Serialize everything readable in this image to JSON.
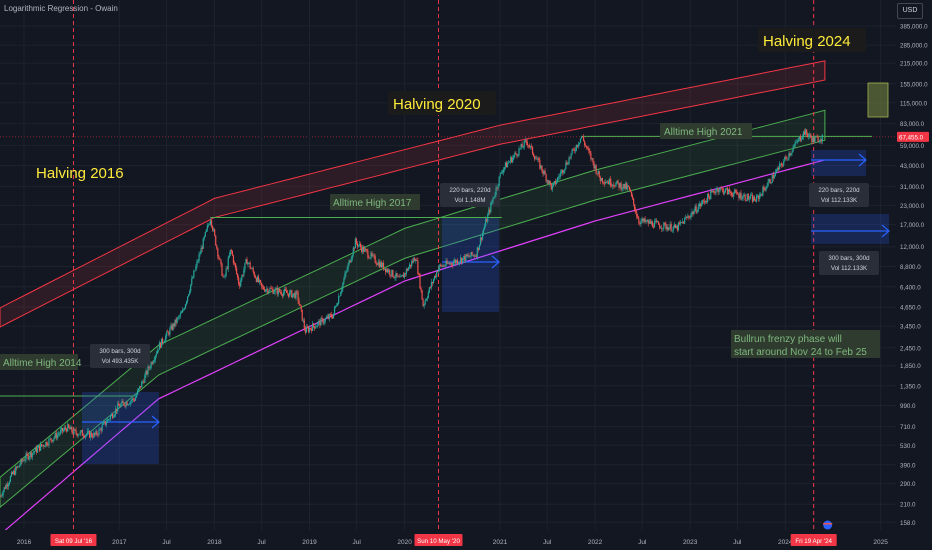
{
  "header": {
    "title": "Logarithmic Regression - Owain",
    "currency": "USD"
  },
  "price_axis": {
    "ticks": [
      "385,000.0",
      "285,000.0",
      "215,000.0",
      "155,000.0",
      "115,000.0",
      "83,000.0",
      "59,000.0",
      "43,000.0",
      "31,000.0",
      "23,000.0",
      "17,000.0",
      "12,000.0",
      "8,800.0",
      "6,400.0",
      "4,650.0",
      "3,450.0",
      "2,450.0",
      "1,850.0",
      "1,350.0",
      "990.0",
      "710.0",
      "530.0",
      "390.0",
      "290.0",
      "210.0",
      "158.0"
    ],
    "last_price": "67,455.0"
  },
  "time_axis": {
    "ticks": [
      "2016",
      "2017",
      "Jul",
      "2018",
      "Jul",
      "2019",
      "Jul",
      "2020",
      "2021",
      "Jul",
      "2022",
      "Jul",
      "2023",
      "Jul",
      "2024",
      "2025"
    ],
    "halving_date_labels": [
      "Sat 09 Jul '16",
      "Sun 10 May '20",
      "Fri 19 Apr '24"
    ]
  },
  "annotations": {
    "halving_2016": "Halving 2016",
    "halving_2020": "Halving 2020",
    "halving_2024": "Halving 2024",
    "ath_2014": "Alltime High 2014",
    "ath_2017": "Alltime High 2017",
    "ath_2021": "Alltime High 2021",
    "bullrun_line1": "Bullrun frenzy phase will",
    "bullrun_line2": "start around Nov 24 to Feb 25"
  },
  "measures": [
    {
      "line1": "300 bars, 300d",
      "line2": "Vol 493.435K"
    },
    {
      "line1": "220 bars, 220d",
      "line2": "Vol 1.148M"
    },
    {
      "line1": "220 bars, 220d",
      "line2": "Vol 112.133K"
    },
    {
      "line1": "300 bars, 300d",
      "line2": "Vol 112.133K"
    }
  ],
  "colors": {
    "background": "#131722",
    "upper_band": "#f23645",
    "lower_band": "#4caf50",
    "regression": "#e040fb",
    "halving_line": "#f23645",
    "annotation_text": "#ffeb3b",
    "measure_box": "#2962ff",
    "candle_up": "#26a69a",
    "candle_down": "#ef5350"
  },
  "chart_data": {
    "type": "candlestick",
    "scale": "log",
    "ylim": [
      140,
      480000
    ],
    "xlim": [
      "2015-10-01",
      "2025-03-01"
    ],
    "price_path": [
      [
        "2015-10-01",
        240
      ],
      [
        "2015-11-15",
        330
      ],
      [
        "2016-01-01",
        430
      ],
      [
        "2016-06-15",
        700
      ],
      [
        "2016-07-09",
        650
      ],
      [
        "2016-10-01",
        620
      ],
      [
        "2017-01-01",
        990
      ],
      [
        "2017-03-01",
        1100
      ],
      [
        "2017-06-01",
        2500
      ],
      [
        "2017-09-01",
        4300
      ],
      [
        "2017-12-17",
        19000
      ],
      [
        "2018-02-06",
        7000
      ],
      [
        "2018-03-05",
        11500
      ],
      [
        "2018-04-06",
        6600
      ],
      [
        "2018-05-05",
        9700
      ],
      [
        "2018-07-01",
        6300
      ],
      [
        "2018-11-15",
        5600
      ],
      [
        "2018-12-15",
        3200
      ],
      [
        "2019-04-01",
        4100
      ],
      [
        "2019-06-26",
        12900
      ],
      [
        "2019-09-01",
        10000
      ],
      [
        "2019-12-15",
        7100
      ],
      [
        "2020-02-13",
        10300
      ],
      [
        "2020-03-12",
        4800
      ],
      [
        "2020-05-10",
        8700
      ],
      [
        "2020-10-01",
        10700
      ],
      [
        "2021-01-08",
        40000
      ],
      [
        "2021-04-14",
        63000
      ],
      [
        "2021-07-20",
        30000
      ],
      [
        "2021-11-10",
        68000
      ],
      [
        "2022-01-20",
        35000
      ],
      [
        "2022-05-10",
        30000
      ],
      [
        "2022-06-18",
        18000
      ],
      [
        "2022-11-09",
        16000
      ],
      [
        "2023-01-15",
        21000
      ],
      [
        "2023-04-14",
        30000
      ],
      [
        "2023-09-11",
        25000
      ],
      [
        "2023-12-15",
        43000
      ],
      [
        "2024-03-14",
        73000
      ],
      [
        "2024-04-19",
        64000
      ],
      [
        "2024-05-25",
        67455
      ]
    ],
    "regression_points": [
      [
        "2015-10-01",
        130
      ],
      [
        "2017-06-01",
        1100
      ],
      [
        "2020-01-01",
        7000
      ],
      [
        "2022-01-01",
        18000
      ],
      [
        "2024-06-01",
        47000
      ]
    ],
    "upper_band_points": [
      [
        "2015-10-01",
        3400
      ],
      [
        "2018-01-01",
        19000
      ],
      [
        "2021-01-01",
        60000
      ],
      [
        "2024-06-01",
        165000
      ]
    ],
    "upper_band_width_ratio": 1.35,
    "lower_band_points": [
      [
        "2015-10-01",
        200
      ],
      [
        "2017-06-01",
        1600
      ],
      [
        "2020-01-01",
        10000
      ],
      [
        "2022-01-01",
        25000
      ],
      [
        "2024-06-01",
        64000
      ]
    ],
    "lower_band_width_ratio": 1.6
  }
}
